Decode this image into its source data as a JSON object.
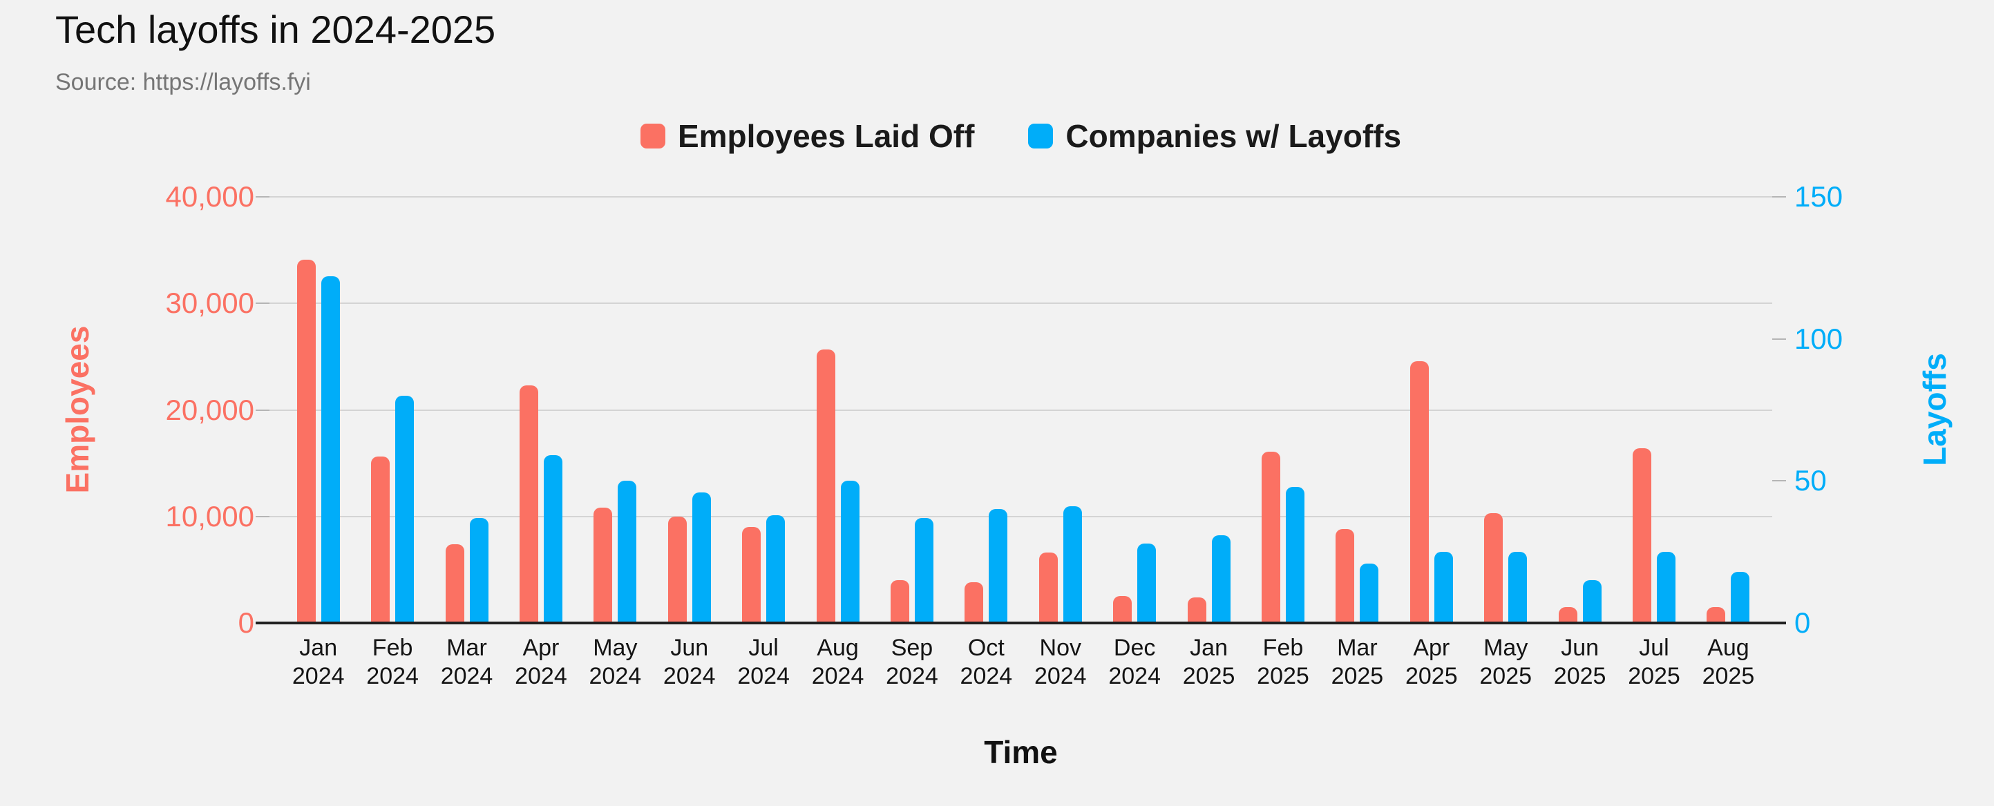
{
  "title": "Tech layoffs in 2024-2025",
  "source": "Source: https://layoffs.fyi",
  "background_color": "#F2F2F2",
  "legend": {
    "items": [
      {
        "label": "Employees Laid Off",
        "color": "#FB7163"
      },
      {
        "label": "Companies w/ Layoffs",
        "color": "#00ADF9"
      }
    ]
  },
  "chart_data": {
    "type": "bar",
    "title": "Tech layoffs in 2024-2025",
    "subtitle": "Source: https://layoffs.fyi",
    "xlabel": "Time",
    "grid": true,
    "legend_position": "top",
    "categories": [
      "Jan 2024",
      "Feb 2024",
      "Mar 2024",
      "Apr 2024",
      "May 2024",
      "Jun 2024",
      "Jul 2024",
      "Aug 2024",
      "Sep 2024",
      "Oct 2024",
      "Nov 2024",
      "Dec 2024",
      "Jan 2025",
      "Feb 2025",
      "Mar 2025",
      "Apr 2025",
      "May 2025",
      "Jun 2025",
      "Jul 2025",
      "Aug 2025"
    ],
    "series": [
      {
        "name": "Employees Laid Off",
        "key": "employees",
        "axis": "left",
        "color": "#FB7163",
        "values": [
          34100,
          15600,
          7400,
          22300,
          10800,
          10000,
          9000,
          25700,
          4000,
          3800,
          6600,
          2500,
          2400,
          16100,
          8800,
          24600,
          10300,
          1500,
          16400,
          1500
        ]
      },
      {
        "name": "Companies w/ Layoffs",
        "key": "companies",
        "axis": "right",
        "color": "#00ADF9",
        "values": [
          122,
          80,
          37,
          59,
          50,
          46,
          38,
          50,
          37,
          40,
          41,
          28,
          31,
          48,
          21,
          25,
          25,
          15,
          25,
          18
        ]
      }
    ],
    "left_axis": {
      "label": "Employees",
      "color": "#FB7163",
      "min": 0,
      "max": 40000,
      "tick_values": [
        0,
        10000,
        20000,
        30000,
        40000
      ],
      "tick_labels": [
        "0",
        "10,000",
        "20,000",
        "30,000",
        "40,000"
      ]
    },
    "right_axis": {
      "label": "Layoffs",
      "color": "#00ADF9",
      "min": 0,
      "max": 150,
      "tick_values": [
        0,
        50,
        100,
        150
      ],
      "tick_labels": [
        "0",
        "50",
        "100",
        "150"
      ]
    }
  }
}
